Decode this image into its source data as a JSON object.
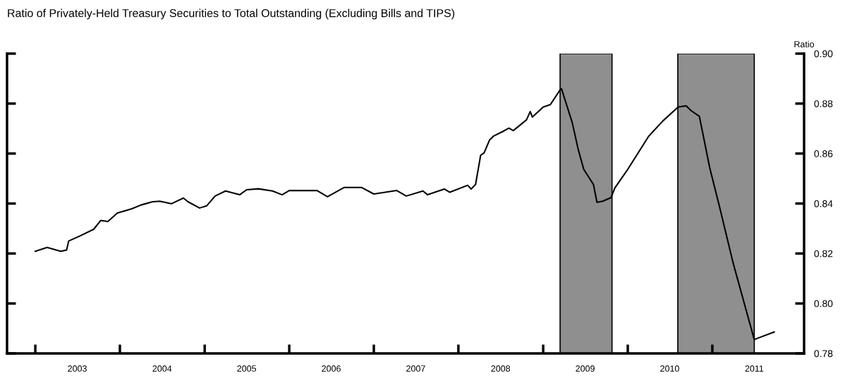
{
  "chart_data": {
    "type": "line",
    "title": "Ratio of Privately-Held Treasury Securities to Total Outstanding (Excluding Bills and TIPS)",
    "ylabel": "Ratio",
    "x": [
      "2003-01-01",
      "2003-02-21",
      "2003-04-21",
      "2003-05-16",
      "2003-05-25",
      "2003-07-10",
      "2003-09-10",
      "2003-10-10",
      "2003-11-10",
      "2003-12-21",
      "2004-02-21",
      "2004-04-01",
      "2004-05-21",
      "2004-06-21",
      "2004-08-10",
      "2004-10-01",
      "2004-10-21",
      "2004-12-10",
      "2005-01-10",
      "2005-02-15",
      "2005-04-01",
      "2005-06-01",
      "2005-07-01",
      "2005-08-21",
      "2005-10-21",
      "2005-12-01",
      "2006-01-01",
      "2006-05-01",
      "2006-06-15",
      "2006-08-25",
      "2006-11-10",
      "2007-01-01",
      "2007-04-10",
      "2007-05-21",
      "2007-08-01",
      "2007-08-21",
      "2007-11-01",
      "2007-11-25",
      "2008-02-10",
      "2008-02-25",
      "2008-03-15",
      "2008-04-06",
      "2008-04-21",
      "2008-05-15",
      "2008-06-01",
      "2008-07-10",
      "2008-08-06",
      "2008-08-25",
      "2008-10-21",
      "2008-11-06",
      "2008-11-15",
      "2009-01-01",
      "2009-02-01",
      "2009-03-15",
      "2009-03-21",
      "2009-05-06",
      "2009-06-01",
      "2009-06-25",
      "2009-08-06",
      "2009-08-21",
      "2009-09-15",
      "2009-10-21",
      "2009-11-06",
      "2010-01-01",
      "2010-04-01",
      "2010-06-01",
      "2010-08-06",
      "2010-09-10",
      "2010-10-01",
      "2010-11-06",
      "2010-12-21",
      "2011-02-01",
      "2011-04-01",
      "2011-07-01",
      "2011-07-10",
      "2011-09-25"
    ],
    "series": [
      {
        "color": "#000000",
        "values": [
          0.8209,
          0.8224,
          0.8209,
          0.8214,
          0.825,
          0.8269,
          0.8297,
          0.8332,
          0.8328,
          0.8362,
          0.8379,
          0.8394,
          0.8407,
          0.8409,
          0.8399,
          0.8422,
          0.8407,
          0.8382,
          0.8391,
          0.843,
          0.845,
          0.8435,
          0.8455,
          0.8459,
          0.845,
          0.8435,
          0.8452,
          0.8452,
          0.8427,
          0.8464,
          0.8464,
          0.8438,
          0.8452,
          0.843,
          0.845,
          0.8435,
          0.8458,
          0.8445,
          0.8473,
          0.8458,
          0.8476,
          0.8593,
          0.8603,
          0.8655,
          0.867,
          0.8688,
          0.8702,
          0.8692,
          0.8735,
          0.8768,
          0.8746,
          0.8786,
          0.8796,
          0.8855,
          0.8859,
          0.8725,
          0.8617,
          0.8537,
          0.8476,
          0.8405,
          0.8409,
          0.8424,
          0.8462,
          0.8537,
          0.8669,
          0.873,
          0.8786,
          0.8791,
          0.8772,
          0.8749,
          0.8542,
          0.8387,
          0.8161,
          0.7855,
          0.7859,
          0.7886
        ]
      }
    ],
    "xlim": [
      "2002-09-01",
      "2012-02-01"
    ],
    "xticks": [
      {
        "value": "2003-01-01",
        "label": null
      },
      {
        "value": "2003-07-01",
        "label": "2003"
      },
      {
        "value": "2004-01-01",
        "label": null
      },
      {
        "value": "2004-07-01",
        "label": "2004"
      },
      {
        "value": "2005-01-01",
        "label": null
      },
      {
        "value": "2005-07-01",
        "label": "2005"
      },
      {
        "value": "2006-01-01",
        "label": null
      },
      {
        "value": "2006-07-01",
        "label": "2006"
      },
      {
        "value": "2007-01-01",
        "label": null
      },
      {
        "value": "2007-07-01",
        "label": "2007"
      },
      {
        "value": "2008-01-01",
        "label": null
      },
      {
        "value": "2008-07-01",
        "label": "2008"
      },
      {
        "value": "2009-01-01",
        "label": null
      },
      {
        "value": "2009-07-01",
        "label": "2009"
      },
      {
        "value": "2010-01-01",
        "label": null
      },
      {
        "value": "2010-07-01",
        "label": "2010"
      },
      {
        "value": "2011-01-01",
        "label": null
      },
      {
        "value": "2011-07-01",
        "label": "2011"
      }
    ],
    "ylim": [
      0.78,
      0.9
    ],
    "yticks": [
      {
        "value": 0.78,
        "label": "0.78"
      },
      {
        "value": 0.8,
        "label": "0.80"
      },
      {
        "value": 0.82,
        "label": "0.82"
      },
      {
        "value": 0.84,
        "label": "0.84"
      },
      {
        "value": 0.86,
        "label": "0.86"
      },
      {
        "value": 0.88,
        "label": "0.88"
      },
      {
        "value": 0.9,
        "label": "0.90"
      }
    ],
    "bands": [
      {
        "axis": "x",
        "from": "2009-03-15",
        "to": "2009-10-25",
        "color": "#8f8f8f"
      },
      {
        "axis": "x",
        "from": "2010-08-05",
        "to": "2011-07-01",
        "color": "#8f8f8f"
      }
    ],
    "grid": false,
    "legend": false,
    "marker": "none",
    "line_style": "solid"
  }
}
